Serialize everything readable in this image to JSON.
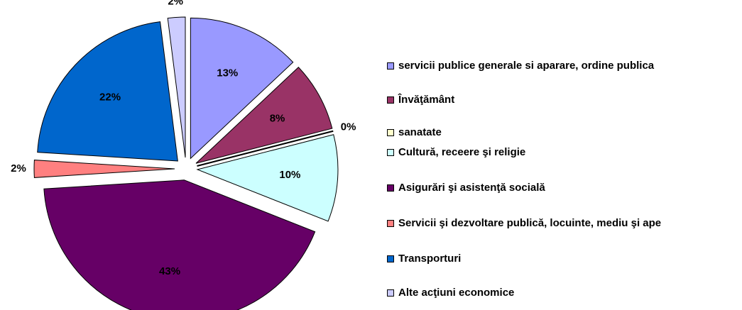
{
  "chart_data": {
    "type": "pie",
    "categories": [
      "servicii publice generale si aparare, ordine publica",
      "Învăţământ",
      "sanatate",
      "Cultură, receere şi religie",
      "Asigurări şi asistenţă socială",
      "Servicii şi dezvoltare publică, locuinte, mediu şi ape",
      "Transporturi",
      "Alte acţiuni economice"
    ],
    "values": [
      13,
      8,
      0,
      10,
      43,
      2,
      22,
      2
    ],
    "value_labels": [
      "13%",
      "8%",
      "0%",
      "10%",
      "43%",
      "2%",
      "22%",
      "2%"
    ],
    "colors": [
      "#9999ff",
      "#993366",
      "#ffffcc",
      "#ccffff",
      "#660066",
      "#ff8080",
      "#0066cc",
      "#ccccff"
    ],
    "legend": "right"
  }
}
